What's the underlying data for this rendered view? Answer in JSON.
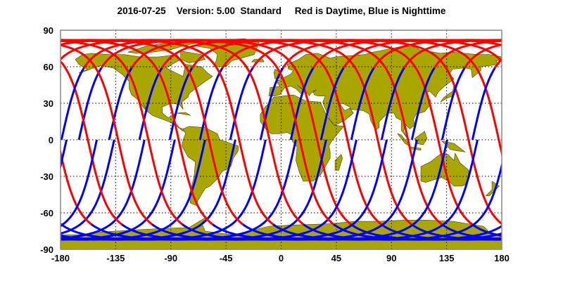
{
  "title": {
    "date": "2016-07-25",
    "version": "Version: 5.00",
    "mode": "Standard",
    "legend_text": "Red is Daytime, Blue is Nighttime"
  },
  "map": {
    "projection": "equirectangular",
    "lon_range": [
      -180,
      180
    ],
    "lat_range": [
      -90,
      90
    ],
    "grid": true,
    "x_ticks": [
      "-180",
      "-135",
      "-90",
      "-45",
      "0",
      "45",
      "90",
      "135",
      "180"
    ],
    "y_ticks": [
      "90",
      "60",
      "30",
      "0",
      "-30",
      "-60",
      "-90"
    ],
    "colors": {
      "land": "#aaa600",
      "daytime_track": "#ff0000",
      "nighttime_track": "#0000ff",
      "frame": "#888888"
    },
    "tracks": {
      "daytime_color_name": "Red",
      "nighttime_color_name": "Blue"
    }
  }
}
